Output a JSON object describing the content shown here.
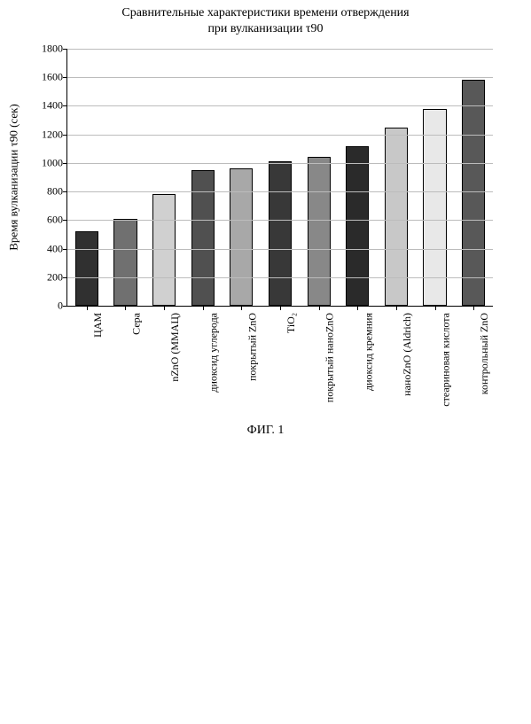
{
  "chart": {
    "type": "bar",
    "title": "Сравнительные характеристики времени отверждения\nпри вулканизации τ90",
    "title_fontsize": 14,
    "ylabel": "Время вулканизации τ90 (сек)",
    "label_fontsize": 13,
    "ylim": [
      0,
      1800
    ],
    "ytick_step": 200,
    "yticks": [
      0,
      200,
      400,
      600,
      800,
      1000,
      1200,
      1400,
      1600,
      1800
    ],
    "categories": [
      "ЦАМ",
      "Сера",
      "nZnO (ММАЦ)",
      "диоксид углерода",
      "покрытый ZnO",
      "TiO₂",
      "покрытый наноZnO",
      "диоксид кремния",
      "наноZnO (Aldrich)",
      "стеариновая кислота",
      "контрольный ZnO"
    ],
    "values": [
      520,
      610,
      780,
      950,
      965,
      1010,
      1040,
      1120,
      1250,
      1380,
      1580
    ],
    "bar_colors": [
      "#303030",
      "#707070",
      "#d0d0d0",
      "#505050",
      "#a8a8a8",
      "#383838",
      "#888888",
      "#2a2a2a",
      "#c8c8c8",
      "#e8e8e8",
      "#585858"
    ],
    "bar_width": 0.6,
    "background_color": "#ffffff",
    "grid_color": "#bcbcbc",
    "axis_color": "#000000",
    "tick_fontsize": 12,
    "category_fontsize": 12
  },
  "caption": "ФИГ. 1"
}
